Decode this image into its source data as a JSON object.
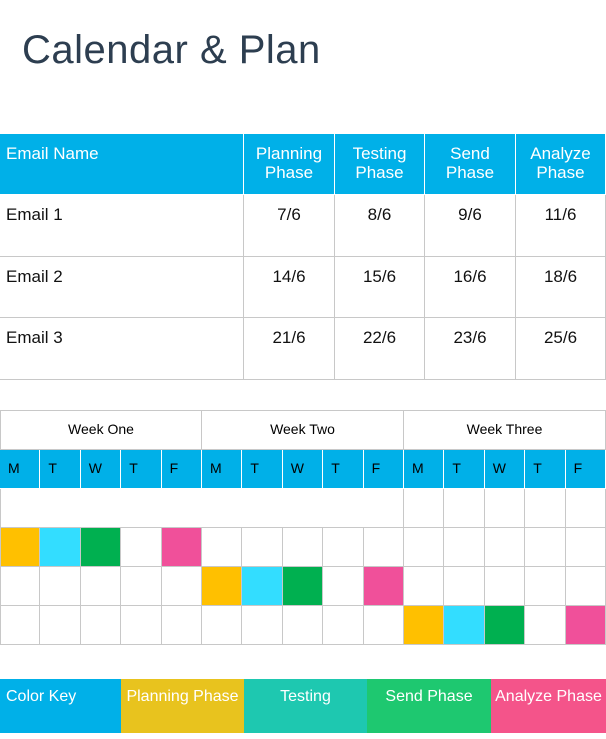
{
  "header": {
    "title": "Calendar & Plan"
  },
  "table": {
    "columns": [
      "Email Name",
      "Planning Phase",
      "Testing Phase",
      "Send Phase",
      "Analyze Phase"
    ],
    "rows": [
      [
        "Email 1",
        "7/6",
        "8/6",
        "9/6",
        "11/6"
      ],
      [
        "Email 2",
        "14/6",
        "15/6",
        "16/6",
        "18/6"
      ],
      [
        "Email 3",
        "21/6",
        "22/6",
        "23/6",
        "25/6"
      ]
    ]
  },
  "schedule": {
    "weeks": [
      "Week One",
      "Week Two",
      "Week Three"
    ],
    "days": [
      "M",
      "T",
      "W",
      "T",
      "F",
      "M",
      "T",
      "W",
      "T",
      "F",
      "M",
      "T",
      "W",
      "T",
      "F"
    ],
    "rows": [
      [
        null,
        null,
        null,
        null,
        null,
        null,
        null,
        null,
        null,
        null,
        null,
        null,
        null,
        null,
        null
      ],
      [
        "#ffc000",
        "#33ddff",
        "#00b050",
        null,
        "#f0509a",
        null,
        null,
        null,
        null,
        null,
        null,
        null,
        null,
        null,
        null
      ],
      [
        null,
        null,
        null,
        null,
        null,
        "#ffc000",
        "#33ddff",
        "#00b050",
        null,
        "#f0509a",
        null,
        null,
        null,
        null,
        null
      ],
      [
        null,
        null,
        null,
        null,
        null,
        null,
        null,
        null,
        null,
        null,
        "#ffc000",
        "#33ddff",
        "#00b050",
        null,
        "#f0509a"
      ]
    ]
  },
  "color_key": {
    "label": "Color Key",
    "items": [
      {
        "name": "Planning Phase",
        "color": "#e8c31e"
      },
      {
        "name": "Testing",
        "color": "#1ec8b0"
      },
      {
        "name": "Send Phase",
        "color": "#1ec870"
      },
      {
        "name": "Analyze Phase",
        "color": "#f4548a"
      }
    ]
  }
}
